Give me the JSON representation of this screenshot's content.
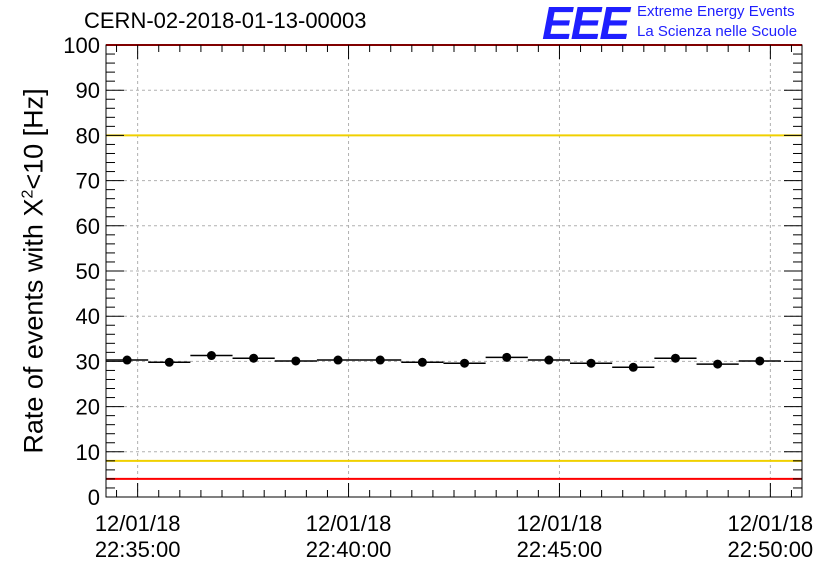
{
  "header": {
    "title": "CERN-02-2018-01-13-00003",
    "logo_text": "EEE",
    "logo_line1": "Extreme Energy Events",
    "logo_line2": "La Scienza nelle Scuole"
  },
  "axes": {
    "ylabel_pre": "Rate of events with X",
    "ylabel_sup": "2",
    "ylabel_post": "<10 [Hz]"
  },
  "colors": {
    "points": "#000000",
    "grid": "#b0b0b0",
    "red_line": "#ff0000",
    "yellow_line": "#f0d000",
    "logo": "#1f1fff"
  },
  "chart_data": {
    "type": "scatter",
    "title": "CERN-02-2018-01-13-00003",
    "xlabel": "",
    "ylabel": "Rate of events with X^2<10 [Hz]",
    "ylim": [
      0,
      100
    ],
    "yticks": [
      0,
      10,
      20,
      30,
      40,
      50,
      60,
      70,
      80,
      90,
      100
    ],
    "xlim": [
      "12/01/18 22:34:15",
      "12/01/18 22:50:45"
    ],
    "xticks": [
      {
        "date": "12/01/18",
        "time": "22:35:00"
      },
      {
        "date": "12/01/18",
        "time": "22:40:00"
      },
      {
        "date": "12/01/18",
        "time": "22:45:00"
      },
      {
        "date": "12/01/18",
        "time": "22:50:00"
      }
    ],
    "grid": true,
    "bin_width_seconds": 60,
    "series": [
      {
        "x": [
          "22:34:45",
          "22:35:45",
          "22:36:45",
          "22:37:45",
          "22:38:45",
          "22:39:45",
          "22:40:45",
          "22:41:45",
          "22:42:45",
          "22:43:45",
          "22:44:45",
          "22:45:45",
          "22:46:45",
          "22:47:45",
          "22:48:45",
          "22:49:45"
        ],
        "values": [
          30.3,
          29.8,
          31.3,
          30.7,
          30.1,
          30.3,
          30.3,
          29.8,
          29.6,
          30.9,
          30.3,
          29.6,
          28.7,
          30.7,
          29.4,
          30.1
        ]
      }
    ],
    "reference_lines": [
      {
        "y": 100,
        "color": "red"
      },
      {
        "y": 80,
        "color": "yellow"
      },
      {
        "y": 8,
        "color": "yellow"
      },
      {
        "y": 4,
        "color": "red"
      }
    ]
  }
}
